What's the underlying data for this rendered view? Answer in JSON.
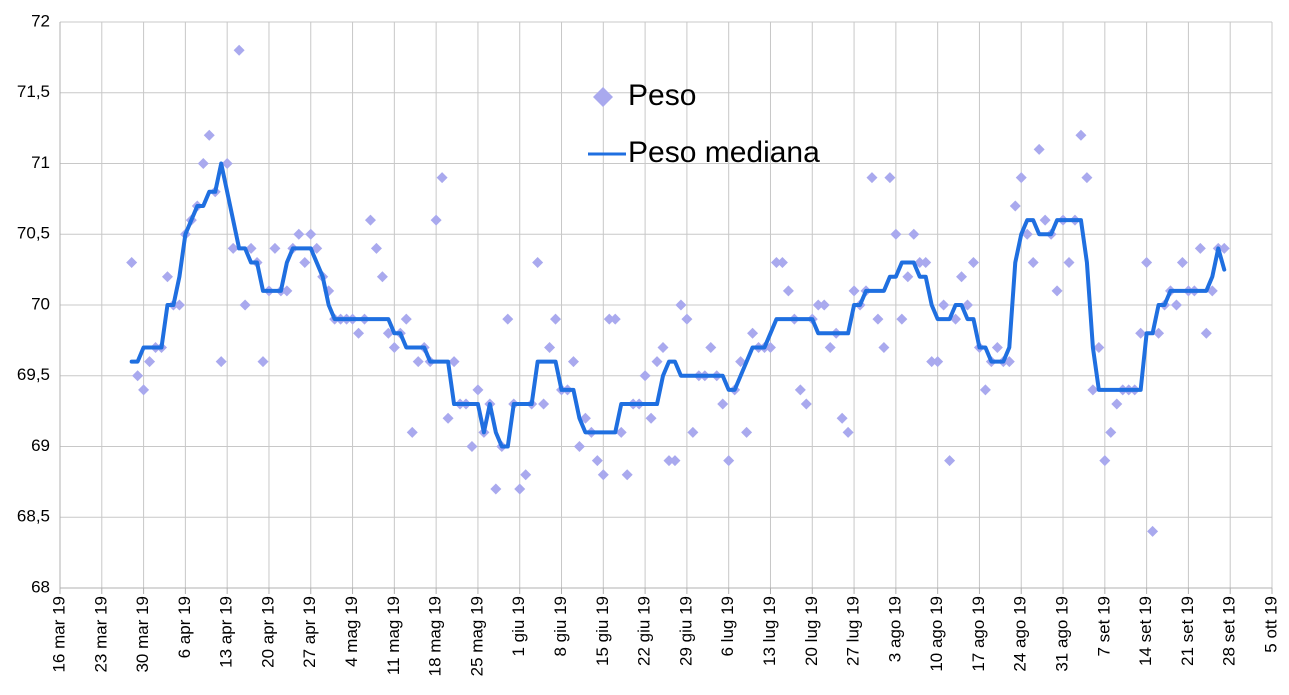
{
  "chart_data": {
    "type": "scatter",
    "legend": "top",
    "grid": true,
    "ylim": [
      68,
      72
    ],
    "yticks": [
      68,
      {
        "value": 68.5,
        "label": "68,5"
      },
      69,
      {
        "value": 69.5,
        "label": "69,5"
      },
      70,
      {
        "value": 70.5,
        "label": "70,5"
      },
      71,
      {
        "value": 71.5,
        "label": "71,5"
      },
      72
    ],
    "xlim": [
      "2019-03-16",
      "2019-10-05"
    ],
    "xticks": [
      {
        "value": "2019-03-16",
        "label": "16 mar 19"
      },
      {
        "value": "2019-03-23",
        "label": "23 mar 19"
      },
      {
        "value": "2019-03-30",
        "label": "30 mar 19"
      },
      {
        "value": "2019-04-06",
        "label": "6 apr 19"
      },
      {
        "value": "2019-04-13",
        "label": "13 apr 19"
      },
      {
        "value": "2019-04-20",
        "label": "20 apr 19"
      },
      {
        "value": "2019-04-27",
        "label": "27 apr 19"
      },
      {
        "value": "2019-05-04",
        "label": "4 mag 19"
      },
      {
        "value": "2019-05-11",
        "label": "11 mag 19"
      },
      {
        "value": "2019-05-18",
        "label": "18 mag 19"
      },
      {
        "value": "2019-05-25",
        "label": "25 mag 19"
      },
      {
        "value": "2019-06-01",
        "label": "1 giu 19"
      },
      {
        "value": "2019-06-08",
        "label": "8 giu 19"
      },
      {
        "value": "2019-06-15",
        "label": "15 giu 19"
      },
      {
        "value": "2019-06-22",
        "label": "22 giu 19"
      },
      {
        "value": "2019-06-29",
        "label": "29 giu 19"
      },
      {
        "value": "2019-07-06",
        "label": "6 lug 19"
      },
      {
        "value": "2019-07-13",
        "label": "13 lug 19"
      },
      {
        "value": "2019-07-20",
        "label": "20 lug 19"
      },
      {
        "value": "2019-07-27",
        "label": "27 lug 19"
      },
      {
        "value": "2019-08-03",
        "label": "3 ago 19"
      },
      {
        "value": "2019-08-10",
        "label": "10 ago 19"
      },
      {
        "value": "2019-08-17",
        "label": "17 ago 19"
      },
      {
        "value": "2019-08-24",
        "label": "24 ago 19"
      },
      {
        "value": "2019-08-31",
        "label": "31 ago 19"
      },
      {
        "value": "2019-09-07",
        "label": "7 set 19"
      },
      {
        "value": "2019-09-14",
        "label": "14 set 19"
      },
      {
        "value": "2019-09-21",
        "label": "21 set 19"
      },
      {
        "value": "2019-09-28",
        "label": "28 set 19"
      },
      {
        "value": "2019-10-05",
        "label": "5 ott 19"
      }
    ],
    "x": [
      "2019-03-28",
      "2019-03-29",
      "2019-03-30",
      "2019-03-31",
      "2019-04-01",
      "2019-04-02",
      "2019-04-03",
      "2019-04-04",
      "2019-04-05",
      "2019-04-06",
      "2019-04-07",
      "2019-04-08",
      "2019-04-09",
      "2019-04-10",
      "2019-04-11",
      "2019-04-12",
      "2019-04-13",
      "2019-04-14",
      "2019-04-15",
      "2019-04-16",
      "2019-04-17",
      "2019-04-18",
      "2019-04-19",
      "2019-04-20",
      "2019-04-21",
      "2019-04-22",
      "2019-04-23",
      "2019-04-24",
      "2019-04-25",
      "2019-04-26",
      "2019-04-27",
      "2019-04-28",
      "2019-04-29",
      "2019-04-30",
      "2019-05-01",
      "2019-05-02",
      "2019-05-03",
      "2019-05-04",
      "2019-05-05",
      "2019-05-06",
      "2019-05-07",
      "2019-05-08",
      "2019-05-09",
      "2019-05-10",
      "2019-05-11",
      "2019-05-12",
      "2019-05-13",
      "2019-05-14",
      "2019-05-15",
      "2019-05-16",
      "2019-05-17",
      "2019-05-18",
      "2019-05-19",
      "2019-05-20",
      "2019-05-21",
      "2019-05-22",
      "2019-05-23",
      "2019-05-24",
      "2019-05-25",
      "2019-05-26",
      "2019-05-27",
      "2019-05-28",
      "2019-05-29",
      "2019-05-30",
      "2019-05-31",
      "2019-06-01",
      "2019-06-02",
      "2019-06-03",
      "2019-06-04",
      "2019-06-05",
      "2019-06-06",
      "2019-06-07",
      "2019-06-08",
      "2019-06-09",
      "2019-06-10",
      "2019-06-11",
      "2019-06-12",
      "2019-06-13",
      "2019-06-14",
      "2019-06-15",
      "2019-06-16",
      "2019-06-17",
      "2019-06-18",
      "2019-06-19",
      "2019-06-20",
      "2019-06-21",
      "2019-06-22",
      "2019-06-23",
      "2019-06-24",
      "2019-06-25",
      "2019-06-26",
      "2019-06-27",
      "2019-06-28",
      "2019-06-29",
      "2019-06-30",
      "2019-07-01",
      "2019-07-02",
      "2019-07-03",
      "2019-07-04",
      "2019-07-05",
      "2019-07-06",
      "2019-07-07",
      "2019-07-08",
      "2019-07-09",
      "2019-07-10",
      "2019-07-11",
      "2019-07-12",
      "2019-07-13",
      "2019-07-14",
      "2019-07-15",
      "2019-07-16",
      "2019-07-17",
      "2019-07-18",
      "2019-07-19",
      "2019-07-20",
      "2019-07-21",
      "2019-07-22",
      "2019-07-23",
      "2019-07-24",
      "2019-07-25",
      "2019-07-26",
      "2019-07-27",
      "2019-07-28",
      "2019-07-29",
      "2019-07-30",
      "2019-07-31",
      "2019-08-01",
      "2019-08-02",
      "2019-08-03",
      "2019-08-04",
      "2019-08-05",
      "2019-08-06",
      "2019-08-07",
      "2019-08-08",
      "2019-08-09",
      "2019-08-10",
      "2019-08-11",
      "2019-08-12",
      "2019-08-13",
      "2019-08-14",
      "2019-08-15",
      "2019-08-16",
      "2019-08-17",
      "2019-08-18",
      "2019-08-19",
      "2019-08-20",
      "2019-08-21",
      "2019-08-22",
      "2019-08-23",
      "2019-08-24",
      "2019-08-25",
      "2019-08-26",
      "2019-08-27",
      "2019-08-28",
      "2019-08-29",
      "2019-08-30",
      "2019-08-31",
      "2019-09-01",
      "2019-09-02",
      "2019-09-03",
      "2019-09-04",
      "2019-09-05",
      "2019-09-06",
      "2019-09-07",
      "2019-09-08",
      "2019-09-09",
      "2019-09-10",
      "2019-09-11",
      "2019-09-12",
      "2019-09-13",
      "2019-09-14",
      "2019-09-15",
      "2019-09-16",
      "2019-09-17",
      "2019-09-18",
      "2019-09-19",
      "2019-09-20",
      "2019-09-21",
      "2019-09-22",
      "2019-09-23",
      "2019-09-24",
      "2019-09-25",
      "2019-09-26",
      "2019-09-27"
    ],
    "series": [
      {
        "name": "Peso",
        "type": "scatter",
        "color": "#a9a9ee",
        "values": [
          70.3,
          69.5,
          69.4,
          69.6,
          69.7,
          69.7,
          70.2,
          70.0,
          70.0,
          70.5,
          70.6,
          70.7,
          71.0,
          71.2,
          70.8,
          69.6,
          71.0,
          70.4,
          71.8,
          70.0,
          70.4,
          70.3,
          69.6,
          70.1,
          70.4,
          70.1,
          70.1,
          70.4,
          70.5,
          70.3,
          70.5,
          70.4,
          70.2,
          70.1,
          69.9,
          69.9,
          69.9,
          69.9,
          69.8,
          69.9,
          70.6,
          70.4,
          70.2,
          69.8,
          69.7,
          69.8,
          69.9,
          69.1,
          69.6,
          69.7,
          69.6,
          70.6,
          70.9,
          69.2,
          69.6,
          69.3,
          69.3,
          69.0,
          69.4,
          69.1,
          69.3,
          68.7,
          69.0,
          69.9,
          69.3,
          68.7,
          68.8,
          69.3,
          70.3,
          69.3,
          69.7,
          69.9,
          69.4,
          69.4,
          69.6,
          69.0,
          69.2,
          69.1,
          68.9,
          68.8,
          69.9,
          69.9,
          69.1,
          68.8,
          69.3,
          69.3,
          69.5,
          69.2,
          69.6,
          69.7,
          68.9,
          68.9,
          70.0,
          69.9,
          69.1,
          69.5,
          69.5,
          69.7,
          69.5,
          69.3,
          68.9,
          69.4,
          69.6,
          69.1,
          69.8,
          69.7,
          69.7,
          69.7,
          70.3,
          70.3,
          70.1,
          69.9,
          69.4,
          69.3,
          69.9,
          70.0,
          70.0,
          69.7,
          69.8,
          69.2,
          69.1,
          70.1,
          70.0,
          70.1,
          70.9,
          69.9,
          69.7,
          70.9,
          70.5,
          69.9,
          70.2,
          70.5,
          70.3,
          70.3,
          69.6,
          69.6,
          70.0,
          68.9,
          69.9,
          70.2,
          70.0,
          70.3,
          69.7,
          69.4,
          69.6,
          69.7,
          69.6,
          69.6,
          70.7,
          70.9,
          70.5,
          70.3,
          71.1,
          70.6,
          70.5,
          70.1,
          70.6,
          70.3,
          70.6,
          71.2,
          70.9,
          69.4,
          69.7,
          68.9,
          69.1,
          69.3,
          69.4,
          69.4,
          69.4,
          69.8,
          70.3,
          68.4,
          69.8,
          70.0,
          70.1,
          70.0,
          70.3,
          70.1,
          70.1,
          70.4,
          69.8,
          70.1,
          70.4,
          70.4
        ]
      },
      {
        "name": "Peso mediana",
        "type": "line",
        "color": "#1f6fe0",
        "values": [
          69.6,
          69.6,
          69.7,
          69.7,
          69.7,
          69.7,
          70.0,
          70.0,
          70.2,
          70.5,
          70.6,
          70.7,
          70.7,
          70.8,
          70.8,
          71.0,
          70.8,
          70.6,
          70.4,
          70.4,
          70.3,
          70.3,
          70.1,
          70.1,
          70.1,
          70.1,
          70.3,
          70.4,
          70.4,
          70.4,
          70.4,
          70.3,
          70.2,
          70.0,
          69.9,
          69.9,
          69.9,
          69.9,
          69.9,
          69.9,
          69.9,
          69.9,
          69.9,
          69.9,
          69.8,
          69.8,
          69.7,
          69.7,
          69.7,
          69.7,
          69.6,
          69.6,
          69.6,
          69.6,
          69.3,
          69.3,
          69.3,
          69.3,
          69.3,
          69.1,
          69.3,
          69.1,
          69.0,
          69.0,
          69.3,
          69.3,
          69.3,
          69.3,
          69.6,
          69.6,
          69.6,
          69.6,
          69.4,
          69.4,
          69.4,
          69.2,
          69.1,
          69.1,
          69.1,
          69.1,
          69.1,
          69.1,
          69.3,
          69.3,
          69.3,
          69.3,
          69.3,
          69.3,
          69.3,
          69.5,
          69.6,
          69.6,
          69.5,
          69.5,
          69.5,
          69.5,
          69.5,
          69.5,
          69.5,
          69.5,
          69.4,
          69.4,
          69.5,
          69.6,
          69.7,
          69.7,
          69.7,
          69.8,
          69.9,
          69.9,
          69.9,
          69.9,
          69.9,
          69.9,
          69.9,
          69.8,
          69.8,
          69.8,
          69.8,
          69.8,
          69.8,
          70.0,
          70.0,
          70.1,
          70.1,
          70.1,
          70.1,
          70.2,
          70.2,
          70.3,
          70.3,
          70.3,
          70.2,
          70.2,
          70.0,
          69.9,
          69.9,
          69.9,
          70.0,
          70.0,
          69.9,
          69.9,
          69.7,
          69.7,
          69.6,
          69.6,
          69.6,
          69.7,
          70.3,
          70.5,
          70.6,
          70.6,
          70.5,
          70.5,
          70.5,
          70.6,
          70.6,
          70.6,
          70.6,
          70.6,
          70.3,
          69.7,
          69.4,
          69.4,
          69.4,
          69.4,
          69.4,
          69.4,
          69.4,
          69.4,
          69.8,
          69.8,
          70.0,
          70.0,
          70.1,
          70.1,
          70.1,
          70.1,
          70.1,
          70.1,
          70.1,
          70.2,
          70.4,
          70.25
        ]
      }
    ]
  }
}
